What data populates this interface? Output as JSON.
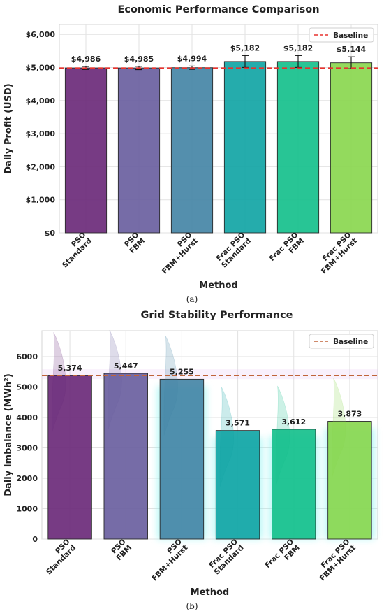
{
  "chart_data": [
    {
      "type": "bar",
      "title": "Economic Performance Comparison",
      "xlabel": "Method",
      "ylabel": "Daily Profit (USD)",
      "caption": "(a)",
      "categories": [
        [
          "PSO",
          "Standard"
        ],
        [
          "PSO",
          "FBM"
        ],
        [
          "PSO",
          "FBM+Hurst"
        ],
        [
          "Frac PSO",
          "Standard"
        ],
        [
          "Frac PSO",
          "FBM"
        ],
        [
          "Frac PSO",
          "FBM+Hurst"
        ]
      ],
      "values": [
        4986,
        4985,
        4994,
        5182,
        5182,
        5144
      ],
      "value_labels": [
        "$4,986",
        "$4,985",
        "$4,994",
        "$5,182",
        "$5,182",
        "$5,144"
      ],
      "error_bars": [
        45,
        50,
        50,
        180,
        180,
        180
      ],
      "ylim": [
        0,
        6300
      ],
      "yticks": [
        0,
        1000,
        2000,
        3000,
        4000,
        5000,
        6000
      ],
      "ytick_labels": [
        "$0",
        "$1,000",
        "$2,000",
        "$3,000",
        "$4,000",
        "$5,000",
        "$6,000"
      ],
      "baseline": {
        "label": "Baseline",
        "value": 4986,
        "color": "#e8322e"
      },
      "legend_position": "top-right",
      "grid": true,
      "colors": [
        "#6b2a7a",
        "#6a5fa0",
        "#4586a6",
        "#12a5a5",
        "#16c08c",
        "#8ad74f"
      ]
    },
    {
      "type": "bar",
      "title": "Grid Stability Performance",
      "xlabel": "Method",
      "ylabel": "Daily Imbalance (MWh²)",
      "caption": "(b)",
      "categories": [
        [
          "PSO",
          "Standard"
        ],
        [
          "PSO",
          "FBM"
        ],
        [
          "PSO",
          "FBM+Hurst"
        ],
        [
          "Frac PSO",
          "Standard"
        ],
        [
          "Frac PSO",
          "FBM"
        ],
        [
          "Frac PSO",
          "FBM+Hurst"
        ]
      ],
      "values": [
        5374,
        5447,
        5255,
        3571,
        3612,
        3873
      ],
      "value_labels": [
        "5,374",
        "5,447",
        "5,255",
        "3,571",
        "3,612",
        "3,873"
      ],
      "ylim": [
        0,
        6850
      ],
      "yticks": [
        0,
        1000,
        2000,
        3000,
        4000,
        5000,
        6000
      ],
      "ytick_labels": [
        "0",
        "1000",
        "2000",
        "3000",
        "4000",
        "5000",
        "6000"
      ],
      "baseline": {
        "label": "Baseline",
        "value": 5374,
        "color": "#c0643a"
      },
      "legend_position": "top-right",
      "grid": true,
      "colors": [
        "#6b2a7a",
        "#6a5fa0",
        "#4586a6",
        "#12a5a5",
        "#16c08c",
        "#8ad74f"
      ]
    }
  ]
}
